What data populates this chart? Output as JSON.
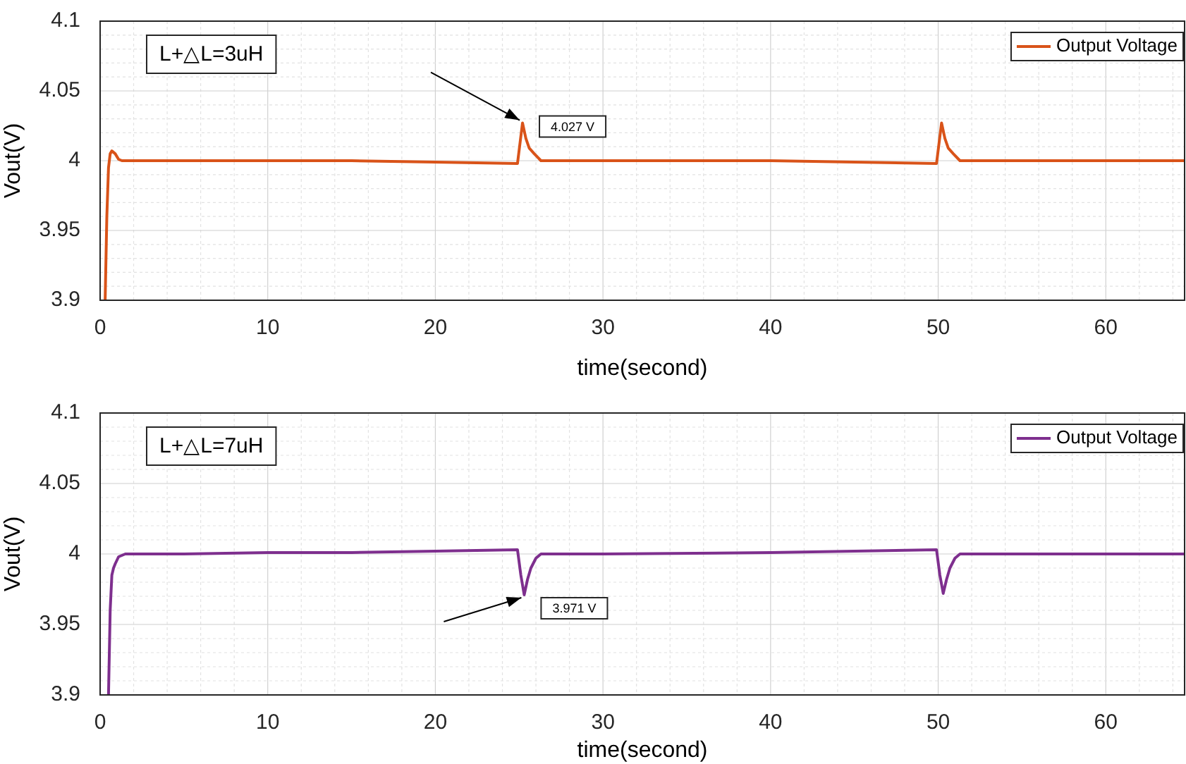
{
  "chart_data": [
    {
      "type": "line",
      "xlabel": "time(second)",
      "ylabel": "Vout(V)",
      "xlim": [
        0,
        64.7
      ],
      "ylim": [
        3.9,
        4.1
      ],
      "xticks": [
        0,
        10,
        20,
        30,
        40,
        50,
        60
      ],
      "yticks": [
        3.9,
        3.95,
        4,
        4.05,
        4.1
      ],
      "grid": true,
      "legend": "top right",
      "marker": "none",
      "line_style": "solid",
      "annotations": [
        "L+△L=3uH",
        {
          "text": "4.027 V",
          "x": 25.2,
          "y": 4.027
        }
      ],
      "series": [
        {
          "name": "Output Voltage",
          "color": "#d95319",
          "x": [
            0.3,
            0.4,
            0.5,
            0.6,
            0.7,
            0.9,
            1.1,
            1.3,
            5,
            10,
            15,
            20,
            24.9,
            25.2,
            25.4,
            25.6,
            25.9,
            26.3,
            30,
            40,
            45,
            49.9,
            50.2,
            50.4,
            50.6,
            50.9,
            51.3,
            55,
            60,
            64.7
          ],
          "values": [
            3.9,
            3.96,
            3.995,
            4.005,
            4.007,
            4.005,
            4.001,
            4,
            4,
            4,
            4,
            3.999,
            3.998,
            4.027,
            4.016,
            4.009,
            4.005,
            4,
            4,
            4,
            3.999,
            3.998,
            4.027,
            4.016,
            4.009,
            4.005,
            4,
            4,
            4,
            4
          ]
        }
      ]
    },
    {
      "type": "line",
      "xlabel": "time(second)",
      "ylabel": "Vout(V)",
      "xlim": [
        0,
        64.7
      ],
      "ylim": [
        3.9,
        4.1
      ],
      "xticks": [
        0,
        10,
        20,
        30,
        40,
        50,
        60
      ],
      "yticks": [
        3.9,
        3.95,
        4,
        4.05,
        4.1
      ],
      "grid": true,
      "legend": "top right",
      "marker": "none",
      "line_style": "solid",
      "annotations": [
        "L+△L=7uH",
        {
          "text": "3.971 V",
          "x": 25.3,
          "y": 3.971
        }
      ],
      "series": [
        {
          "name": "Output Voltage",
          "color": "#7e2f8e",
          "x": [
            0.5,
            0.6,
            0.7,
            0.8,
            0.9,
            1.1,
            1.5,
            5,
            10,
            15,
            20,
            24.9,
            25.1,
            25.3,
            25.5,
            25.7,
            26,
            26.3,
            30,
            40,
            45,
            49.9,
            50.1,
            50.3,
            50.5,
            50.7,
            51,
            51.3,
            55,
            60,
            64.7
          ],
          "values": [
            3.9,
            3.96,
            3.985,
            3.99,
            3.993,
            3.998,
            4,
            4,
            4.001,
            4.001,
            4.002,
            4.003,
            3.985,
            3.971,
            3.982,
            3.99,
            3.997,
            4,
            4,
            4.001,
            4.002,
            4.003,
            3.985,
            3.972,
            3.982,
            3.99,
            3.997,
            4,
            4,
            4,
            4
          ]
        }
      ]
    }
  ]
}
